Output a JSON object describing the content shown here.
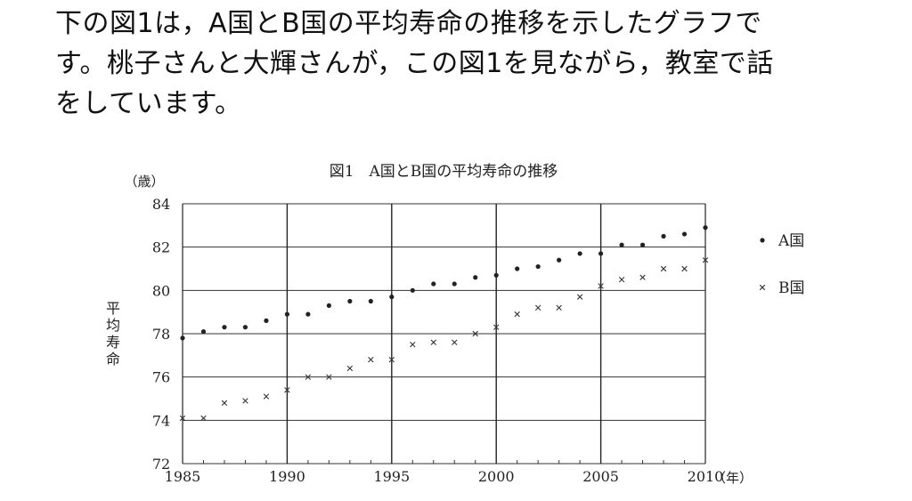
{
  "text": {
    "lines": [
      "下の図1は，A国とB国の平均寿命の推移を示したグラフで",
      "す。桃子さんと大輝さんが，この図1を見ながら，教室で話",
      "をしています。"
    ]
  },
  "chart_data": {
    "type": "scatter",
    "title": "図1　A国とB国の平均寿命の推移",
    "xlabel": "（年）",
    "ylabel": "平均寿命",
    "yunit": "（歳）",
    "xlim": [
      1985,
      2010
    ],
    "ylim": [
      72,
      84
    ],
    "xticks": [
      1985,
      1990,
      1995,
      2000,
      2005,
      2010
    ],
    "yticks": [
      72,
      74,
      76,
      78,
      80,
      82,
      84
    ],
    "grid": true,
    "legend_position": "right",
    "series": [
      {
        "name": "A国",
        "marker": "dot",
        "x": [
          1985,
          1986,
          1987,
          1988,
          1989,
          1990,
          1991,
          1992,
          1993,
          1994,
          1995,
          1996,
          1997,
          1998,
          1999,
          2000,
          2001,
          2002,
          2003,
          2004,
          2005,
          2006,
          2007,
          2008,
          2009,
          2010
        ],
        "y": [
          77.8,
          78.1,
          78.3,
          78.3,
          78.6,
          78.9,
          78.9,
          79.3,
          79.5,
          79.5,
          79.7,
          80.0,
          80.3,
          80.3,
          80.6,
          80.7,
          81.0,
          81.1,
          81.4,
          81.7,
          81.7,
          82.1,
          82.1,
          82.5,
          82.6,
          82.9
        ]
      },
      {
        "name": "B国",
        "marker": "cross",
        "x": [
          1985,
          1986,
          1987,
          1988,
          1989,
          1990,
          1991,
          1992,
          1993,
          1994,
          1995,
          1996,
          1997,
          1998,
          1999,
          2000,
          2001,
          2002,
          2003,
          2004,
          2005,
          2006,
          2007,
          2008,
          2009,
          2010
        ],
        "y": [
          74.1,
          74.1,
          74.8,
          74.9,
          75.1,
          75.4,
          76.0,
          76.0,
          76.4,
          76.8,
          76.8,
          77.5,
          77.6,
          77.6,
          78.0,
          78.3,
          78.9,
          79.2,
          79.2,
          79.7,
          80.2,
          80.5,
          80.6,
          81.0,
          81.0,
          81.4
        ]
      }
    ]
  }
}
